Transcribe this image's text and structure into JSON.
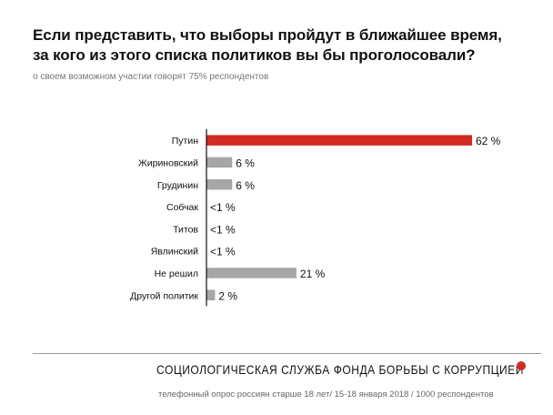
{
  "title_line1": "Если представить, что выборы пройдут в ближайшее время,",
  "title_line2": "за кого из этого списка политиков вы бы проголосовали?",
  "subtitle": "о своем возможном участии говорят 75% респондентов",
  "footer_brand": "СОЦИОЛОГИЧЕСКАЯ СЛУЖБА ФОНДА БОРЬБЫ С КОРРУПЦИЕЙ",
  "footer_note": "телефонный опрос россиян старше 18 лет/ 15-18 января 2018 / 1000 респондентов",
  "colors": {
    "highlight": "#d32a22",
    "bar": "#a6a6a6",
    "axis": "#111111",
    "brand_dot": "#d32a22"
  },
  "chart_data": {
    "type": "bar",
    "orientation": "horizontal",
    "categories": [
      "Путин",
      "Жириновский",
      "Грудинин",
      "Собчак",
      "Титов",
      "Явлинский",
      "Не решил",
      "Другой политик"
    ],
    "values": [
      62,
      6,
      6,
      0,
      0,
      0,
      21,
      2
    ],
    "labels": [
      "62 %",
      "6 %",
      "6 %",
      "<1 %",
      "<1 %",
      "<1 %",
      "21 %",
      "2 %"
    ],
    "highlight_index": 0,
    "xlim": [
      0,
      62
    ],
    "grid": false
  }
}
